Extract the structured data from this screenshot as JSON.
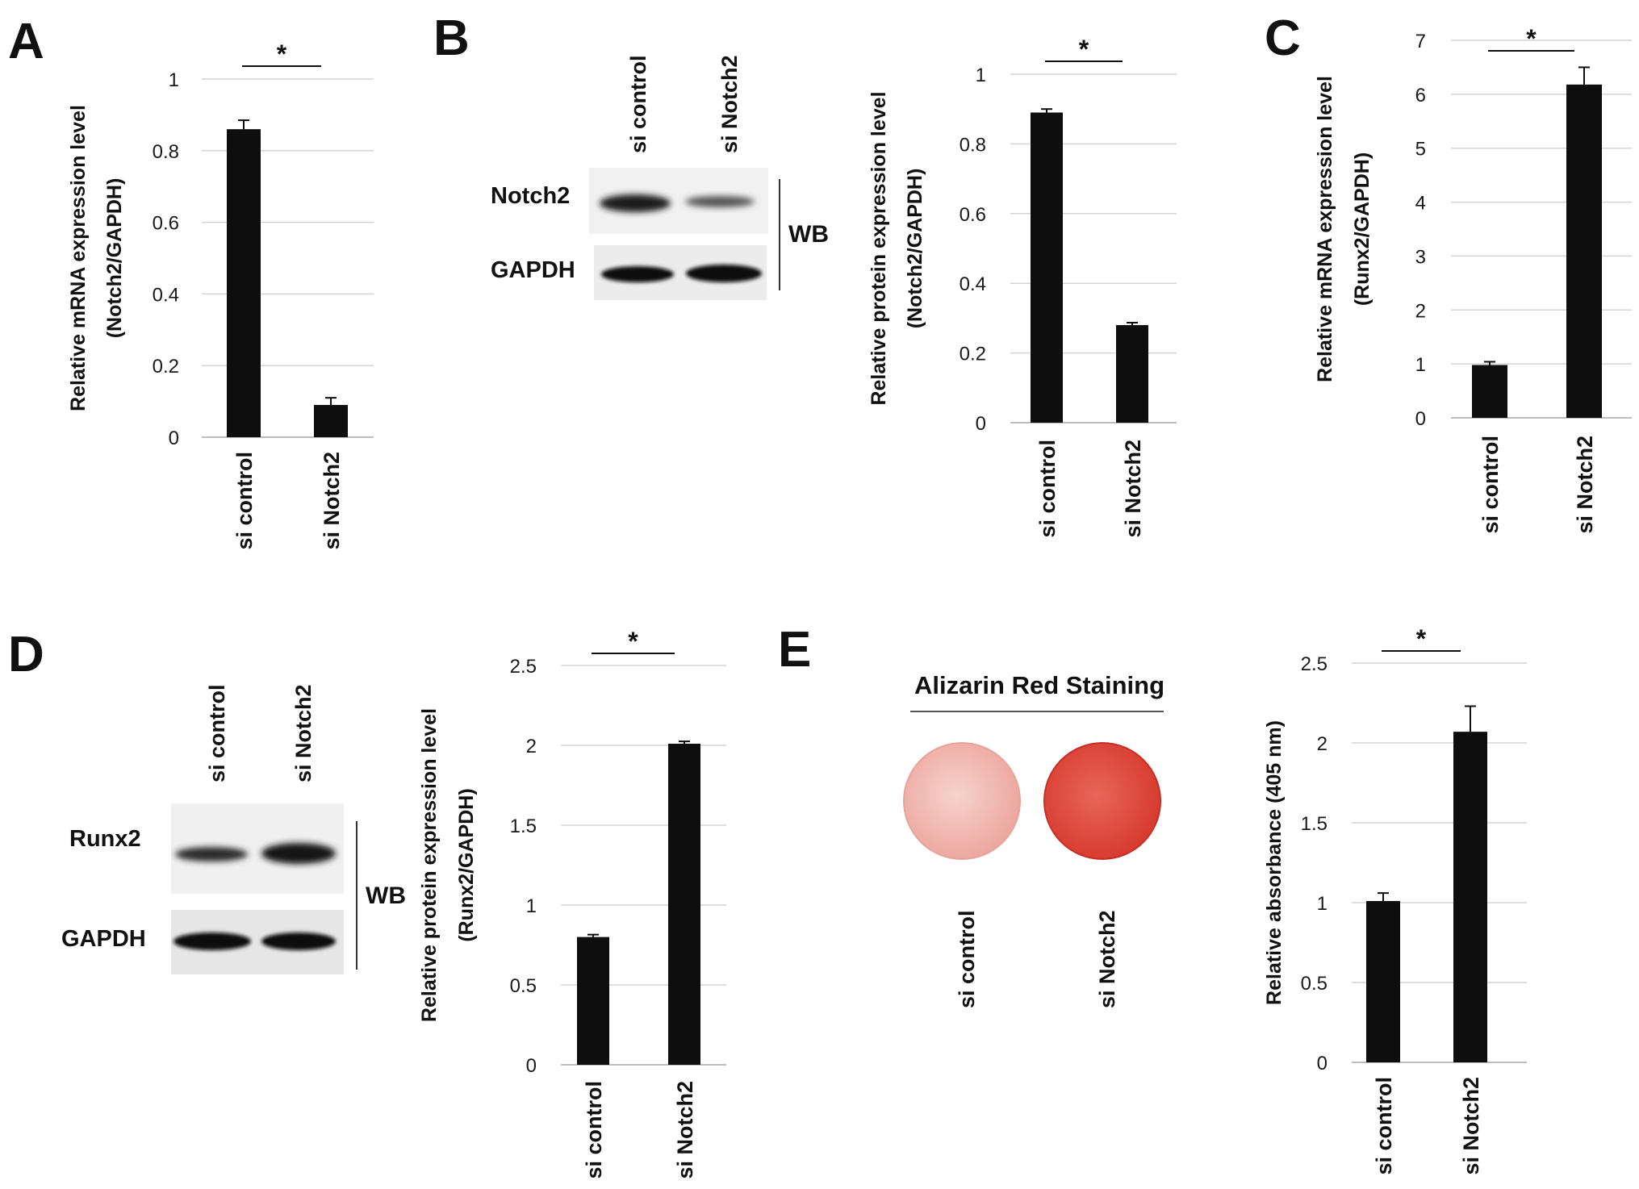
{
  "panels": [
    {
      "letter": "A"
    },
    {
      "letter": "B",
      "blot": {
        "lanes": [
          "si control",
          "si Notch2"
        ],
        "rows": [
          "Notch2",
          "GAPDH"
        ],
        "method": "WB"
      }
    },
    {
      "letter": "C"
    },
    {
      "letter": "D",
      "blot": {
        "lanes": [
          "si control",
          "si Notch2"
        ],
        "rows": [
          "Runx2",
          "GAPDH"
        ],
        "method": "WB"
      }
    },
    {
      "letter": "E",
      "staining": {
        "title": "Alizarin Red Staining",
        "wells": [
          "si control",
          "si Notch2"
        ],
        "colors": [
          "#f1b3ab",
          "#e04a3b"
        ]
      }
    }
  ],
  "chart_data": [
    {
      "id": "A",
      "type": "bar",
      "title": "",
      "xlabel": "",
      "ylabel": [
        "Relative mRNA expression level",
        "(Notch2/GAPDH)"
      ],
      "categories": [
        "si control",
        "si Notch2"
      ],
      "values": [
        0.86,
        0.09
      ],
      "errors": [
        0.025,
        0.02
      ],
      "ylim": [
        0,
        1
      ],
      "yticks": [
        "0",
        "0.2",
        "0.4",
        "0.6",
        "0.8",
        "1"
      ],
      "significance": "*",
      "grid": true
    },
    {
      "id": "B",
      "type": "bar",
      "title": "",
      "xlabel": "",
      "ylabel": [
        "Relative protein expression level",
        "(Notch2/GAPDH)"
      ],
      "categories": [
        "si control",
        "si Notch2"
      ],
      "values": [
        0.89,
        0.28
      ],
      "errors": [
        0.01,
        0.007
      ],
      "ylim": [
        0,
        1
      ],
      "yticks": [
        "0",
        "0.2",
        "0.4",
        "0.6",
        "0.8",
        "1"
      ],
      "significance": "*",
      "grid": true
    },
    {
      "id": "C",
      "type": "bar",
      "title": "",
      "xlabel": "",
      "ylabel": [
        "Relative mRNA expression level",
        "(Runx2/GAPDH)"
      ],
      "categories": [
        "si control",
        "si Notch2"
      ],
      "values": [
        0.98,
        6.18
      ],
      "errors": [
        0.06,
        0.32
      ],
      "ylim": [
        0,
        7
      ],
      "yticks": [
        "0",
        "1",
        "2",
        "3",
        "4",
        "5",
        "6",
        "7"
      ],
      "significance": "*",
      "grid": true
    },
    {
      "id": "D",
      "type": "bar",
      "title": "",
      "xlabel": "",
      "ylabel": [
        "Relative protein expression level",
        "(Runx2/GAPDH)"
      ],
      "categories": [
        "si control",
        "si Notch2"
      ],
      "values": [
        0.8,
        2.01
      ],
      "errors": [
        0.015,
        0.015
      ],
      "ylim": [
        0,
        2.5
      ],
      "yticks": [
        "0",
        "0.5",
        "1",
        "1.5",
        "2",
        "2.5"
      ],
      "significance": "*",
      "grid": true
    },
    {
      "id": "E",
      "type": "bar",
      "title": "",
      "xlabel": "",
      "ylabel": [
        "Relative absorbance (405 nm)"
      ],
      "categories": [
        "si control",
        "si Notch2"
      ],
      "values": [
        1.01,
        2.07
      ],
      "errors": [
        0.05,
        0.16
      ],
      "ylim": [
        0,
        2.5
      ],
      "yticks": [
        "0",
        "0.5",
        "1",
        "1.5",
        "2",
        "2.5"
      ],
      "significance": "*",
      "grid": true
    }
  ]
}
